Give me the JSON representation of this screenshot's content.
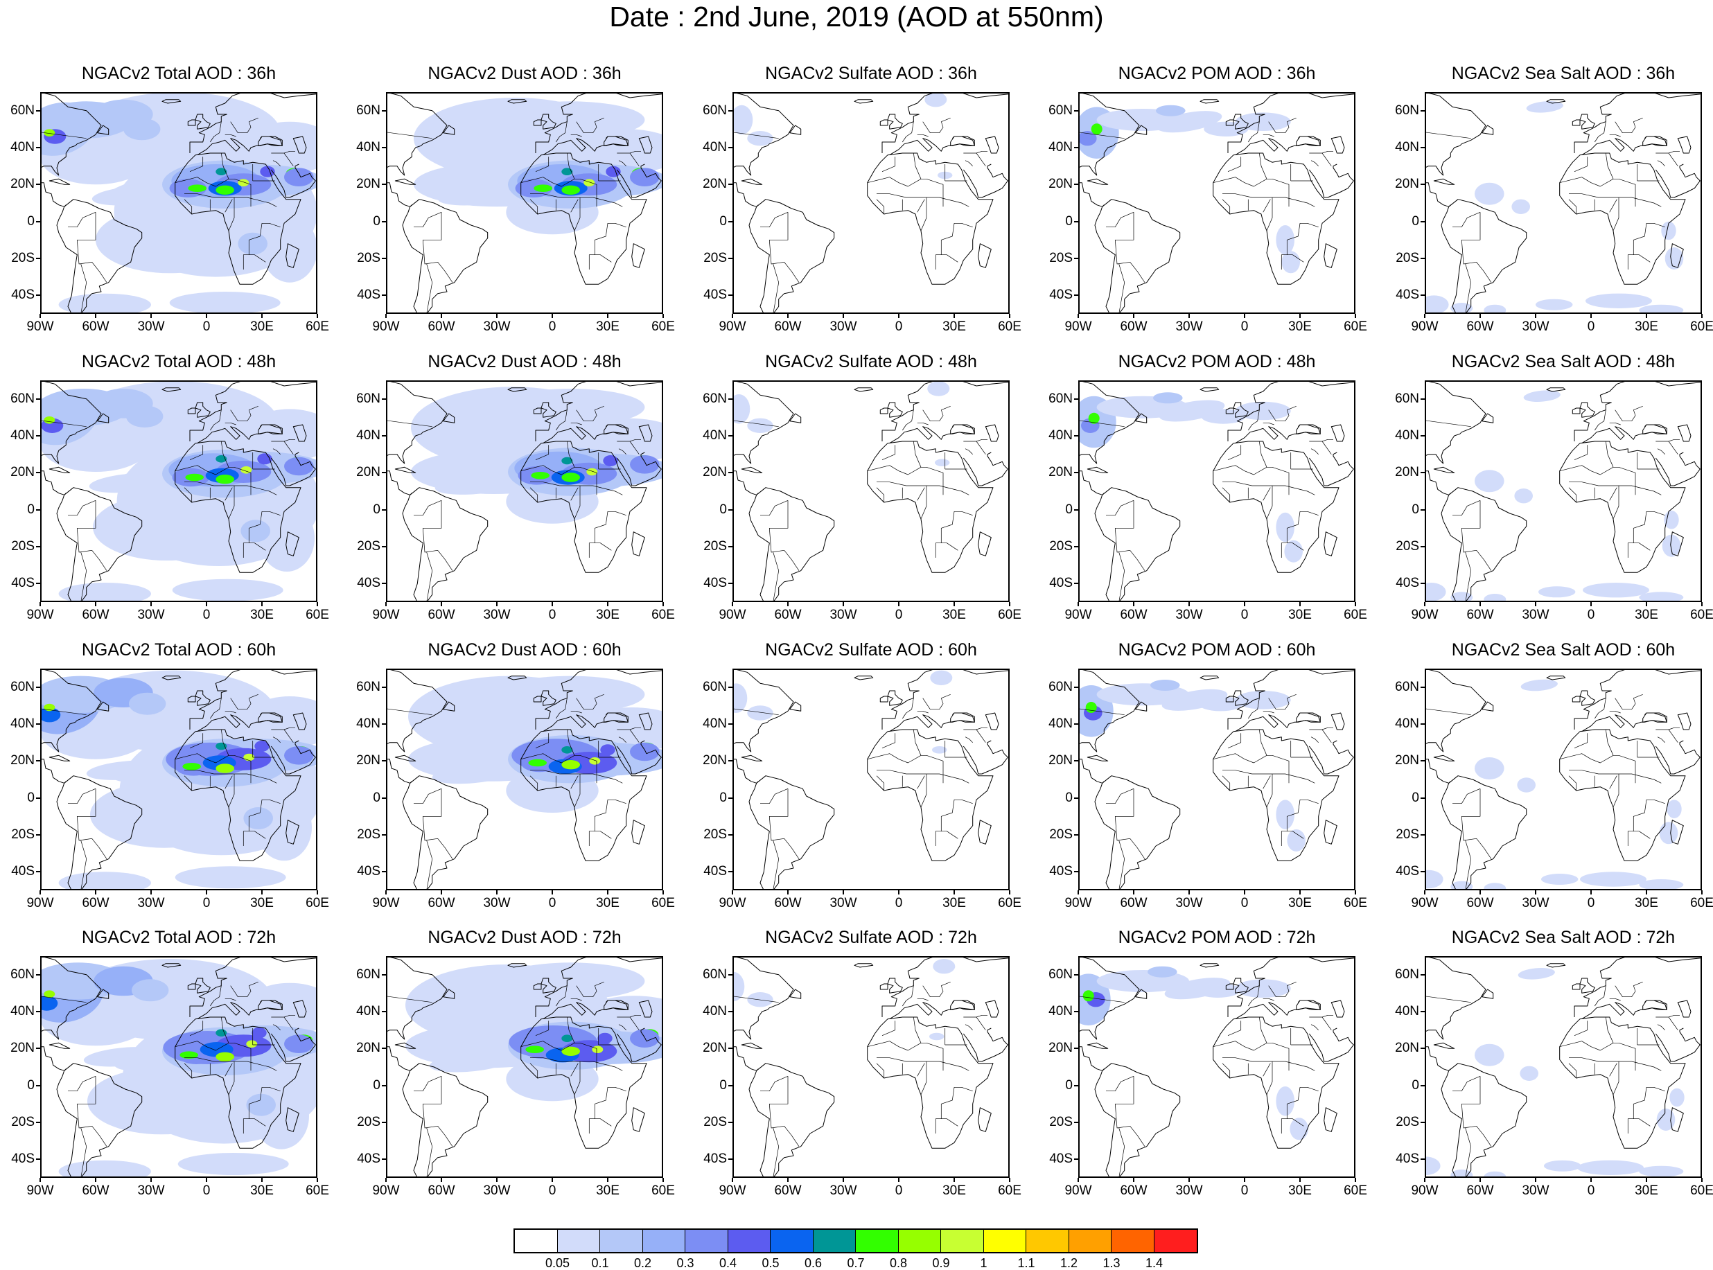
{
  "title": "Date : 2nd June, 2019 (AOD at 550nm)",
  "lat_labels": [
    "60N",
    "40N",
    "20N",
    "0",
    "20S",
    "40S"
  ],
  "lon_labels": [
    "90W",
    "60W",
    "30W",
    "0",
    "30E",
    "60E"
  ],
  "map_extent": {
    "lon": [
      -90,
      60
    ],
    "lat": [
      -50,
      70
    ]
  },
  "panels": [
    {
      "title": "NGACv2 Total AOD : 36h",
      "species": "total",
      "lead_hours": 36
    },
    {
      "title": "NGACv2 Dust AOD : 36h",
      "species": "dust",
      "lead_hours": 36
    },
    {
      "title": "NGACv2 Sulfate AOD : 36h",
      "species": "sulfate",
      "lead_hours": 36
    },
    {
      "title": "NGACv2 POM AOD : 36h",
      "species": "pom",
      "lead_hours": 36
    },
    {
      "title": "NGACv2 Sea Salt AOD : 36h",
      "species": "seasalt",
      "lead_hours": 36
    },
    {
      "title": "NGACv2 Total AOD : 48h",
      "species": "total",
      "lead_hours": 48
    },
    {
      "title": "NGACv2 Dust AOD : 48h",
      "species": "dust",
      "lead_hours": 48
    },
    {
      "title": "NGACv2 Sulfate AOD : 48h",
      "species": "sulfate",
      "lead_hours": 48
    },
    {
      "title": "NGACv2 POM AOD : 48h",
      "species": "pom",
      "lead_hours": 48
    },
    {
      "title": "NGACv2 Sea Salt AOD : 48h",
      "species": "seasalt",
      "lead_hours": 48
    },
    {
      "title": "NGACv2 Total AOD : 60h",
      "species": "total",
      "lead_hours": 60
    },
    {
      "title": "NGACv2 Dust AOD : 60h",
      "species": "dust",
      "lead_hours": 60
    },
    {
      "title": "NGACv2 Sulfate AOD : 60h",
      "species": "sulfate",
      "lead_hours": 60
    },
    {
      "title": "NGACv2 POM AOD : 60h",
      "species": "pom",
      "lead_hours": 60
    },
    {
      "title": "NGACv2 Sea Salt AOD : 60h",
      "species": "seasalt",
      "lead_hours": 60
    },
    {
      "title": "NGACv2 Total AOD : 72h",
      "species": "total",
      "lead_hours": 72
    },
    {
      "title": "NGACv2 Dust AOD : 72h",
      "species": "dust",
      "lead_hours": 72
    },
    {
      "title": "NGACv2 Sulfate AOD : 72h",
      "species": "sulfate",
      "lead_hours": 72
    },
    {
      "title": "NGACv2 POM AOD : 72h",
      "species": "pom",
      "lead_hours": 72
    },
    {
      "title": "NGACv2 Sea Salt  AOD : 72h",
      "species": "seasalt",
      "lead_hours": 72
    }
  ],
  "colorbar": {
    "colors": [
      "#ffffff",
      "#d2dcfa",
      "#b4c8f8",
      "#96b0f8",
      "#7c8ef4",
      "#5c5cf0",
      "#0a64f0",
      "#009696",
      "#32ff00",
      "#96ff00",
      "#c8ff32",
      "#ffff00",
      "#ffc800",
      "#ffa000",
      "#ff6400",
      "#ff1e1e"
    ],
    "labels": [
      "0.05",
      "0.1",
      "0.2",
      "0.3",
      "0.4",
      "0.5",
      "0.6",
      "0.7",
      "0.8",
      "0.9",
      "1",
      "1.1",
      "1.2",
      "1.3",
      "1.4"
    ]
  }
}
